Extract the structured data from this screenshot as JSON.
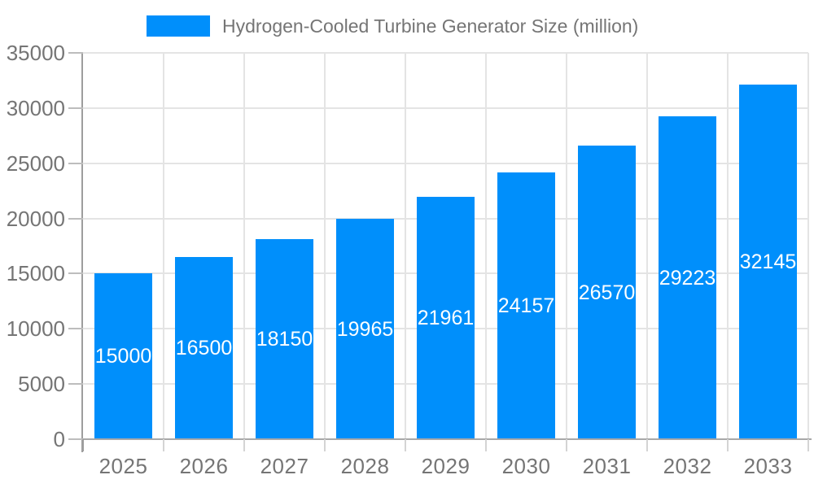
{
  "chart_data": {
    "type": "bar",
    "title": "Hydrogen-Cooled Turbine Generator Size (million)",
    "categories": [
      "2025",
      "2026",
      "2027",
      "2028",
      "2029",
      "2030",
      "2031",
      "2032",
      "2033"
    ],
    "values": [
      15000,
      16500,
      18150,
      19965,
      21961,
      24157,
      26570,
      29223,
      32145
    ],
    "bar_labels": [
      "15000",
      "16500",
      "18150",
      "19965",
      "21961",
      "24157",
      "26570",
      "29223",
      "32145"
    ],
    "ytick_labels": [
      "0",
      "5000",
      "10000",
      "15000",
      "20000",
      "25000",
      "30000",
      "35000"
    ],
    "ylim": [
      0,
      35000
    ],
    "ytick_step": 5000,
    "grid": true,
    "legend_position": "top",
    "xlabel": "",
    "ylabel": ""
  },
  "legend": {
    "label": "Hydrogen-Cooled Turbine Generator Size (million)"
  },
  "colors": {
    "bar": "#008FFB",
    "bar_label_text": "#FFFFFF",
    "axis_text": "#757575",
    "gridline": "#E4E4E4",
    "baseline": "#A8A8A8",
    "axis_line": "#9E9E9E",
    "tick_y": "#BDBDBD",
    "tick_x": "#D4D4D4",
    "background": "#FFFFFF"
  }
}
